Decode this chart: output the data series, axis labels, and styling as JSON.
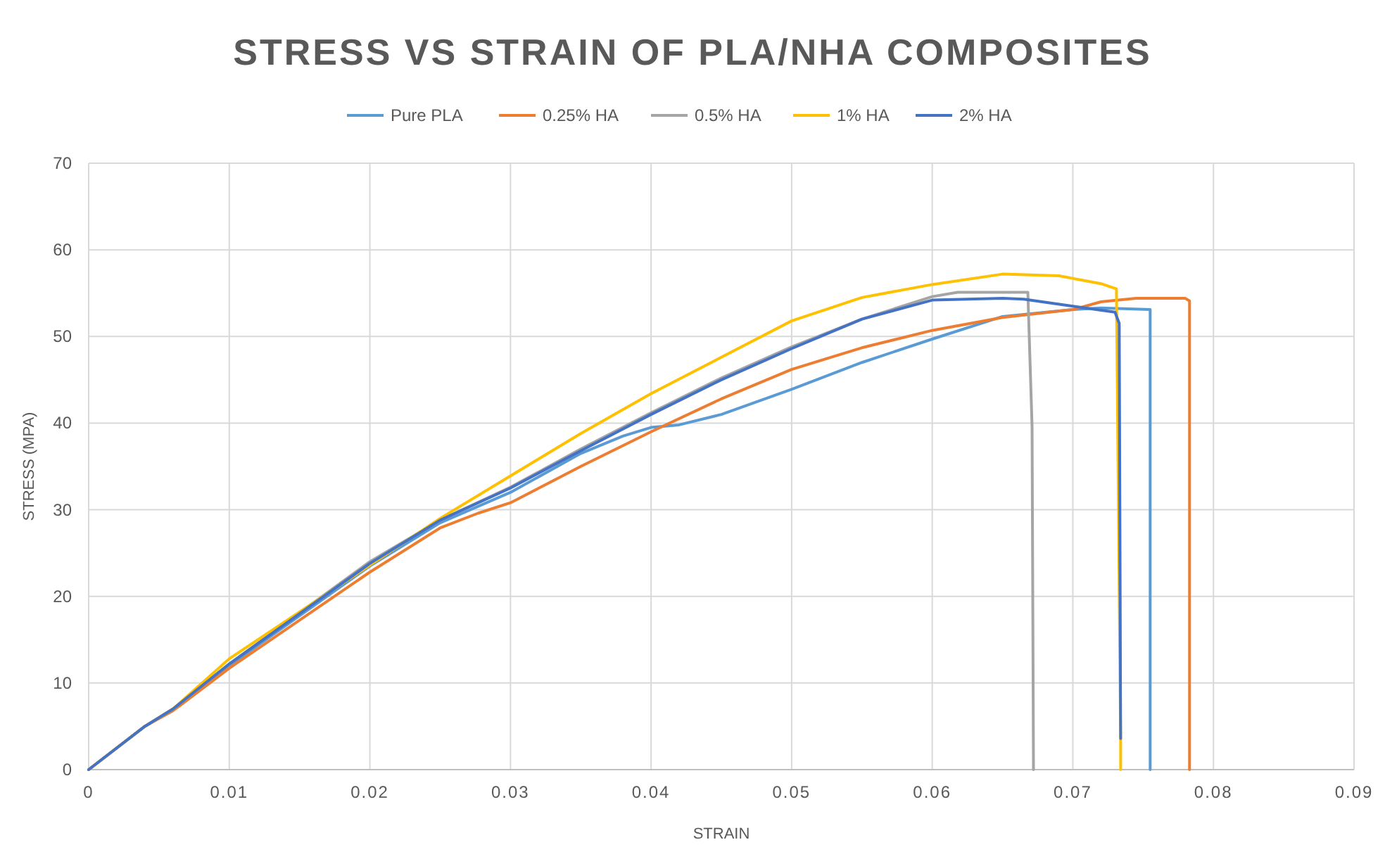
{
  "chart_data": {
    "type": "line",
    "title": "STRESS VS STRAIN OF PLA/NHA COMPOSITES",
    "xlabel": "STRAIN",
    "ylabel": "STRESS (MPA)",
    "xlim": [
      0,
      0.09
    ],
    "xticks": [
      0,
      0.01,
      0.02,
      0.03,
      0.04,
      0.05,
      0.06,
      0.07,
      0.08,
      0.09
    ],
    "ylim": [
      0,
      70
    ],
    "yticks": [
      0,
      10,
      20,
      30,
      40,
      50,
      60,
      70
    ],
    "grid": true,
    "legend": "top",
    "marker": "none",
    "line_style": "solid",
    "series": [
      {
        "name": "Pure PLA",
        "color": "#5b9bd5",
        "x": [
          0,
          0.004,
          0.006,
          0.01,
          0.02,
          0.025,
          0.03,
          0.035,
          0.038,
          0.04,
          0.042,
          0.045,
          0.05,
          0.055,
          0.06,
          0.065,
          0.07,
          0.072,
          0.0755,
          0.0755
        ],
        "values": [
          0,
          5,
          7,
          12,
          23.5,
          28.5,
          32,
          36.5,
          38.5,
          39.5,
          39.8,
          41,
          43.9,
          47,
          49.7,
          52.3,
          53.1,
          53.3,
          53.1,
          0
        ]
      },
      {
        "name": "0.25% HA",
        "color": "#ed7d31",
        "x": [
          0,
          0.004,
          0.006,
          0.01,
          0.02,
          0.025,
          0.0277,
          0.03,
          0.035,
          0.04,
          0.045,
          0.05,
          0.055,
          0.06,
          0.065,
          0.07,
          0.072,
          0.0745,
          0.078,
          0.0783,
          0.0783
        ],
        "values": [
          0,
          5,
          6.8,
          11.7,
          22.8,
          27.9,
          29.6,
          30.8,
          35,
          39,
          42.8,
          46.2,
          48.7,
          50.7,
          52.2,
          53.1,
          54,
          54.4,
          54.4,
          54.1,
          0
        ]
      },
      {
        "name": "0.5% HA",
        "color": "#a5a5a5",
        "x": [
          0,
          0.004,
          0.006,
          0.01,
          0.02,
          0.025,
          0.03,
          0.035,
          0.04,
          0.045,
          0.05,
          0.055,
          0.06,
          0.0618,
          0.0668,
          0.0671,
          0.0672
        ],
        "values": [
          0,
          5,
          7,
          12.2,
          24,
          28.8,
          32.6,
          37,
          41.2,
          45.2,
          48.8,
          52,
          54.6,
          55.1,
          55.1,
          39.6,
          0
        ]
      },
      {
        "name": "1% HA",
        "color": "#ffc000",
        "x": [
          0,
          0.004,
          0.006,
          0.01,
          0.02,
          0.025,
          0.03,
          0.035,
          0.04,
          0.045,
          0.05,
          0.055,
          0.06,
          0.065,
          0.069,
          0.072,
          0.0731,
          0.0734,
          0.0734
        ],
        "values": [
          0,
          5,
          7,
          12.8,
          23.6,
          29,
          33.9,
          38.8,
          43.4,
          47.6,
          51.8,
          54.5,
          56,
          57.2,
          57,
          56.1,
          55.5,
          3.6,
          0
        ]
      },
      {
        "name": "2% HA",
        "color": "#4472c4",
        "x": [
          0,
          0.004,
          0.006,
          0.01,
          0.02,
          0.025,
          0.03,
          0.035,
          0.04,
          0.045,
          0.05,
          0.055,
          0.06,
          0.065,
          0.0665,
          0.07,
          0.073,
          0.0733,
          0.0734
        ],
        "values": [
          0,
          5,
          7,
          12.2,
          23.8,
          28.8,
          32.5,
          36.8,
          41,
          45,
          48.6,
          52,
          54.2,
          54.4,
          54.3,
          53.5,
          52.8,
          51.5,
          3.6
        ]
      }
    ]
  }
}
